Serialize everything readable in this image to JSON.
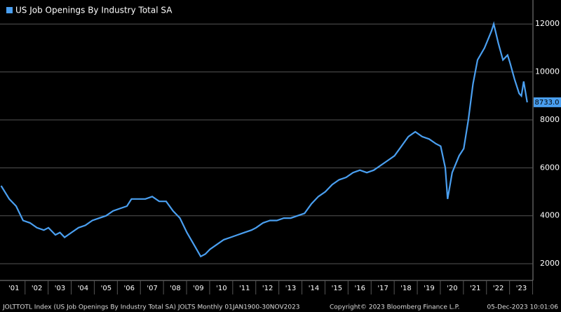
{
  "chart_data": {
    "type": "line",
    "legend_label": "US Job Openings By Industry Total SA",
    "last_value_label": "8733.0",
    "footer_left": "JOLTTOTL Index (US Job Openings By Industry Total SA) JOLTS  Monthly 01JAN1900-30NOV2023",
    "footer_center": "Copyright© 2023 Bloomberg Finance L.P.",
    "footer_right": "05-Dec-2023 10:01:06",
    "series": [
      {
        "name": "US Job Openings By Industry Total SA",
        "color": "#4a9ff0",
        "x": [
          2000.95,
          2001.3,
          2001.6,
          2001.9,
          2002.2,
          2002.5,
          2002.8,
          2003.0,
          2003.3,
          2003.5,
          2003.7,
          2004.0,
          2004.3,
          2004.6,
          2004.9,
          2005.2,
          2005.5,
          2005.8,
          2006.1,
          2006.4,
          2006.6,
          2006.9,
          2007.2,
          2007.5,
          2007.8,
          2008.1,
          2008.4,
          2008.7,
          2009.0,
          2009.3,
          2009.6,
          2009.8,
          2010.0,
          2010.3,
          2010.6,
          2010.9,
          2011.2,
          2011.5,
          2011.8,
          2012.0,
          2012.3,
          2012.6,
          2012.9,
          2013.2,
          2013.5,
          2013.8,
          2014.1,
          2014.4,
          2014.7,
          2015.0,
          2015.3,
          2015.6,
          2015.9,
          2016.2,
          2016.5,
          2016.8,
          2017.1,
          2017.4,
          2017.7,
          2018.0,
          2018.3,
          2018.6,
          2018.9,
          2019.2,
          2019.5,
          2019.8,
          2020.0,
          2020.2,
          2020.3,
          2020.5,
          2020.8,
          2021.0,
          2021.2,
          2021.4,
          2021.6,
          2021.9,
          2022.2,
          2022.3,
          2022.5,
          2022.7,
          2022.9,
          2023.0,
          2023.2,
          2023.4,
          2023.5,
          2023.6,
          2023.75
        ],
        "values": [
          5250,
          4700,
          4400,
          3800,
          3700,
          3500,
          3400,
          3500,
          3200,
          3300,
          3100,
          3300,
          3500,
          3600,
          3800,
          3900,
          4000,
          4200,
          4300,
          4400,
          4700,
          4700,
          4700,
          4800,
          4600,
          4600,
          4200,
          3900,
          3300,
          2800,
          2300,
          2400,
          2600,
          2800,
          3000,
          3100,
          3200,
          3300,
          3400,
          3500,
          3700,
          3800,
          3800,
          3900,
          3900,
          4000,
          4100,
          4500,
          4800,
          5000,
          5300,
          5500,
          5600,
          5800,
          5900,
          5800,
          5900,
          6100,
          6300,
          6500,
          6900,
          7300,
          7500,
          7300,
          7200,
          7000,
          6900,
          6000,
          4700,
          5800,
          6500,
          6800,
          8000,
          9500,
          10500,
          11000,
          11700,
          12000,
          11200,
          10500,
          10700,
          10400,
          9700,
          9100,
          9000,
          9600,
          8733
        ]
      }
    ],
    "xlim": [
      2000.9,
      2024.0
    ],
    "xticks": [
      {
        "value": 2001.5,
        "label": "'01"
      },
      {
        "value": 2002.5,
        "label": "'02"
      },
      {
        "value": 2003.5,
        "label": "'03"
      },
      {
        "value": 2004.5,
        "label": "'04"
      },
      {
        "value": 2005.5,
        "label": "'05"
      },
      {
        "value": 2006.5,
        "label": "'06"
      },
      {
        "value": 2007.5,
        "label": "'07"
      },
      {
        "value": 2008.5,
        "label": "'08"
      },
      {
        "value": 2009.5,
        "label": "'09"
      },
      {
        "value": 2010.5,
        "label": "'10"
      },
      {
        "value": 2011.5,
        "label": "'11"
      },
      {
        "value": 2012.5,
        "label": "'12"
      },
      {
        "value": 2013.5,
        "label": "'13"
      },
      {
        "value": 2014.5,
        "label": "'14"
      },
      {
        "value": 2015.5,
        "label": "'15"
      },
      {
        "value": 2016.5,
        "label": "'16"
      },
      {
        "value": 2017.5,
        "label": "'17"
      },
      {
        "value": 2018.5,
        "label": "'18"
      },
      {
        "value": 2019.5,
        "label": "'19"
      },
      {
        "value": 2020.5,
        "label": "'20"
      },
      {
        "value": 2021.5,
        "label": "'21"
      },
      {
        "value": 2022.5,
        "label": "'22"
      },
      {
        "value": 2023.5,
        "label": "'23"
      }
    ],
    "ylim": [
      1300,
      13000
    ],
    "yticks": [
      2000,
      4000,
      6000,
      8000,
      10000,
      12000
    ],
    "grid": true
  }
}
